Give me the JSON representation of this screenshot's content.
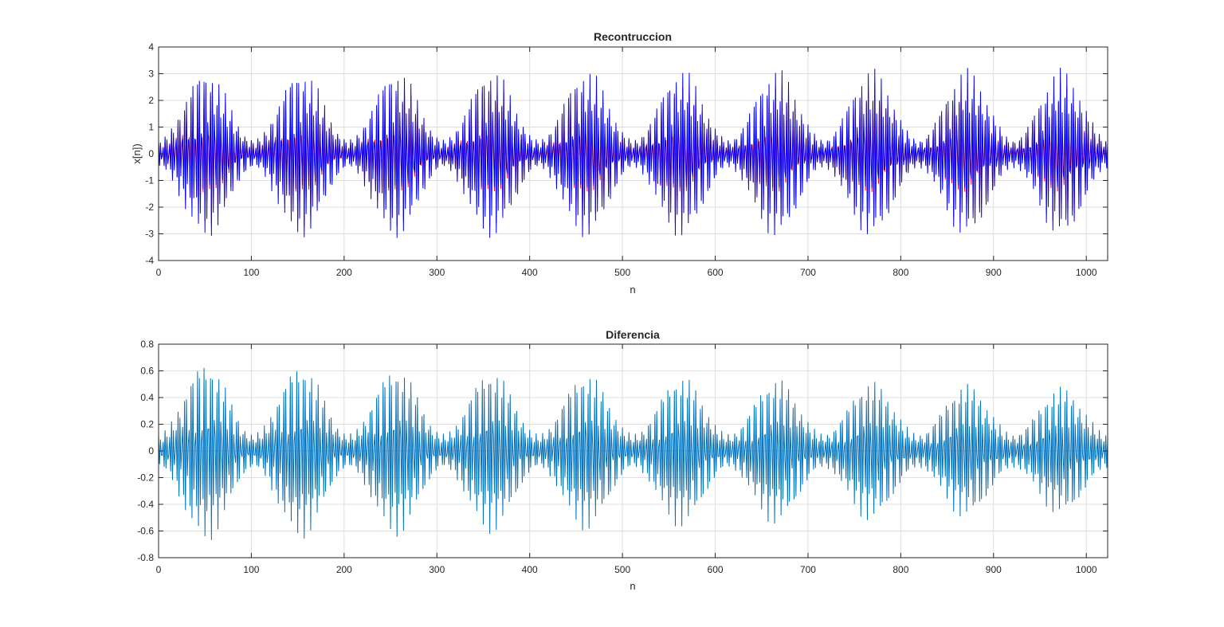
{
  "chart_data": [
    {
      "type": "line",
      "title": "Recontruccion",
      "xlabel": "n",
      "ylabel": "x[n])",
      "xlim": [
        0,
        1023
      ],
      "ylim": [
        -4,
        4
      ],
      "xticks": [
        0,
        100,
        200,
        300,
        400,
        500,
        600,
        700,
        800,
        900,
        1000
      ],
      "yticks": [
        -4,
        -3,
        -2,
        -1,
        0,
        1,
        2,
        3,
        4
      ],
      "grid": true,
      "n_samples": 1024,
      "envelope_period": 102.4,
      "envelope_max": 3.0,
      "envelope_min": 0.5,
      "carrier_cycles_per_sample": 0.43,
      "series": [
        {
          "color": "#ff0000",
          "amplitude_scale": 0.85
        },
        {
          "color": "#0000ff",
          "amplitude_scale": 1.0
        }
      ]
    },
    {
      "type": "line",
      "title": "Diferencia",
      "xlabel": "n",
      "ylabel": "",
      "xlim": [
        0,
        1023
      ],
      "ylim": [
        -0.8,
        0.8
      ],
      "xticks": [
        0,
        100,
        200,
        300,
        400,
        500,
        600,
        700,
        800,
        900,
        1000
      ],
      "yticks": [
        -0.8,
        -0.6,
        -0.4,
        -0.2,
        0,
        0.2,
        0.4,
        0.6,
        0.8
      ],
      "grid": true,
      "n_samples": 1024,
      "envelope_period": 102.4,
      "envelope_start_max": 0.65,
      "envelope_end_max": 0.45,
      "envelope_min": 0.12,
      "carrier_cycles_per_sample": 0.43,
      "series": [
        {
          "color": "#0072bd"
        }
      ]
    }
  ]
}
